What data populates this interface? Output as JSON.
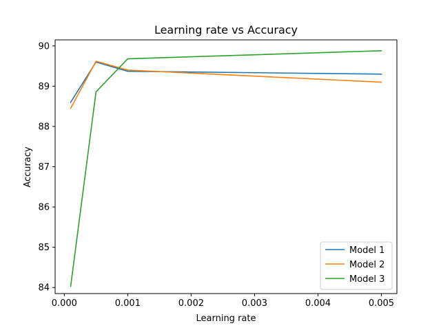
{
  "chart_data": {
    "type": "line",
    "title": "Learning rate vs Accuracy",
    "xlabel": "Learning rate",
    "ylabel": "Accuracy",
    "x": [
      0.0001,
      0.0005,
      0.001,
      0.005
    ],
    "xlim": [
      -0.000145,
      0.005245
    ],
    "ylim": [
      83.85,
      90.15
    ],
    "xticks": [
      0.0,
      0.001,
      0.002,
      0.003,
      0.004,
      0.005
    ],
    "xtick_labels": [
      "0.000",
      "0.001",
      "0.002",
      "0.003",
      "0.004",
      "0.005"
    ],
    "yticks": [
      84,
      85,
      86,
      87,
      88,
      89,
      90
    ],
    "ytick_labels": [
      "84",
      "85",
      "86",
      "87",
      "88",
      "89",
      "90"
    ],
    "grid": false,
    "legend_position": "lower-right",
    "series": [
      {
        "name": "Model 1",
        "color": "#1f77b4",
        "values": [
          88.6,
          89.6,
          89.37,
          89.3
        ]
      },
      {
        "name": "Model 2",
        "color": "#ff7f0e",
        "values": [
          88.45,
          89.62,
          89.4,
          89.1
        ]
      },
      {
        "name": "Model 3",
        "color": "#2ca02c",
        "values": [
          84.03,
          88.86,
          89.68,
          89.88
        ]
      }
    ]
  }
}
